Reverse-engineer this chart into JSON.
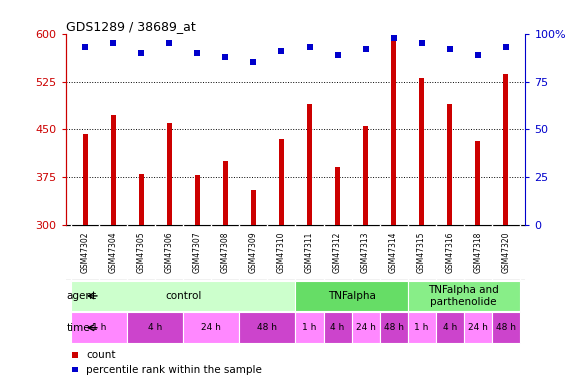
{
  "title": "GDS1289 / 38689_at",
  "samples": [
    "GSM47302",
    "GSM47304",
    "GSM47305",
    "GSM47306",
    "GSM47307",
    "GSM47308",
    "GSM47309",
    "GSM47310",
    "GSM47311",
    "GSM47312",
    "GSM47313",
    "GSM47314",
    "GSM47315",
    "GSM47316",
    "GSM47318",
    "GSM47320"
  ],
  "counts": [
    443,
    473,
    380,
    460,
    378,
    400,
    355,
    435,
    490,
    390,
    455,
    597,
    530,
    490,
    432,
    537
  ],
  "percentile_vals": [
    93,
    95,
    90,
    95,
    90,
    88,
    85,
    91,
    93,
    89,
    92,
    98,
    95,
    92,
    89,
    93
  ],
  "bar_color": "#cc0000",
  "dot_color": "#0000cc",
  "ylim_left": [
    300,
    600
  ],
  "ylim_right": [
    0,
    100
  ],
  "yticks_left": [
    300,
    375,
    450,
    525,
    600
  ],
  "yticks_right": [
    0,
    25,
    50,
    75,
    100
  ],
  "agent_groups": [
    {
      "label": "control",
      "start": 0,
      "end": 8,
      "color": "#ccffcc"
    },
    {
      "label": "TNFalpha",
      "start": 8,
      "end": 12,
      "color": "#66dd66"
    },
    {
      "label": "TNFalpha and\nparthenolide",
      "start": 12,
      "end": 16,
      "color": "#88ee88"
    }
  ],
  "time_groups": [
    {
      "label": "1 h",
      "start": 0,
      "end": 2,
      "color": "#ff88ff"
    },
    {
      "label": "4 h",
      "start": 2,
      "end": 4,
      "color": "#cc44cc"
    },
    {
      "label": "24 h",
      "start": 4,
      "end": 6,
      "color": "#ff88ff"
    },
    {
      "label": "48 h",
      "start": 6,
      "end": 8,
      "color": "#cc44cc"
    },
    {
      "label": "1 h",
      "start": 8,
      "end": 9,
      "color": "#ff88ff"
    },
    {
      "label": "4 h",
      "start": 9,
      "end": 10,
      "color": "#cc44cc"
    },
    {
      "label": "24 h",
      "start": 10,
      "end": 11,
      "color": "#ff88ff"
    },
    {
      "label": "48 h",
      "start": 11,
      "end": 12,
      "color": "#cc44cc"
    },
    {
      "label": "1 h",
      "start": 12,
      "end": 13,
      "color": "#ff88ff"
    },
    {
      "label": "4 h",
      "start": 13,
      "end": 14,
      "color": "#cc44cc"
    },
    {
      "label": "24 h",
      "start": 14,
      "end": 15,
      "color": "#ff88ff"
    },
    {
      "label": "48 h",
      "start": 15,
      "end": 16,
      "color": "#cc44cc"
    }
  ],
  "legend_count_color": "#cc0000",
  "legend_dot_color": "#0000cc",
  "background_color": "#ffffff"
}
